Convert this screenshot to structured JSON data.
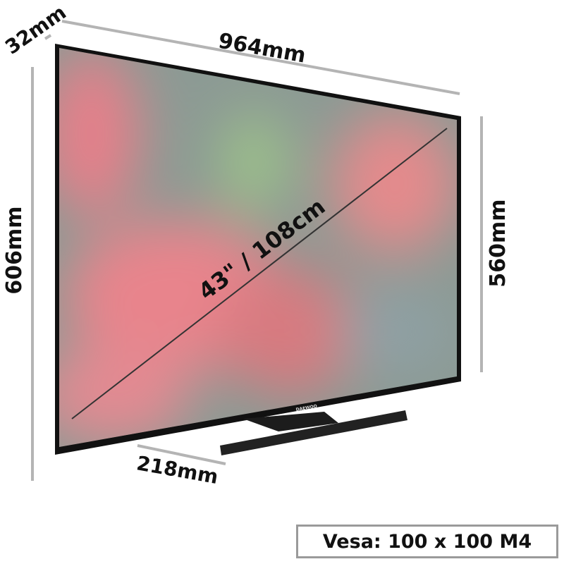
{
  "dimensions": {
    "depth": "32mm",
    "width": "964mm",
    "height_with_stand": "606mm",
    "height_panel": "560mm",
    "diagonal": "43\" / 108cm",
    "stand_depth": "218mm"
  },
  "brand_logo": "DAEWOO",
  "vesa": "Vesa: 100 x 100 M4",
  "colors": {
    "dimension_line": "#b4b4b4",
    "bezel": "#111111",
    "label": "#111111"
  }
}
